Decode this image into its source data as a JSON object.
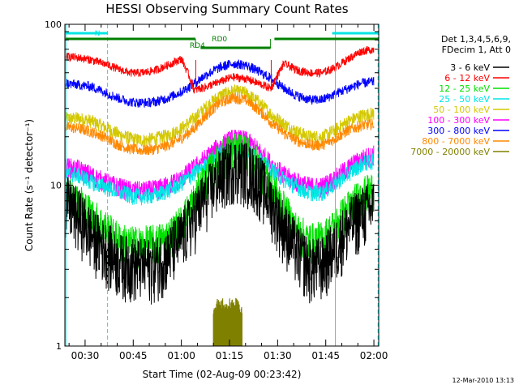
{
  "chart_data": {
    "type": "line",
    "title": "HESSI Observing Summary Count Rates",
    "xlabel": "Start Time (02-Aug-09 00:23:42)",
    "ylabel": "Count Rate (s⁻¹ detector⁻¹)",
    "yscale": "log",
    "ylim": [
      1,
      100
    ],
    "y_ticks": [
      {
        "v": 1,
        "label": "1"
      },
      {
        "v": 10,
        "label": "10"
      },
      {
        "v": 100,
        "label": "100"
      }
    ],
    "xlim_minutes": [
      23.7,
      121.5
    ],
    "x_ticks": [
      {
        "m": 30,
        "label": "00:30"
      },
      {
        "m": 45,
        "label": "00:45"
      },
      {
        "m": 60,
        "label": "01:00"
      },
      {
        "m": 75,
        "label": "01:15"
      },
      {
        "m": 90,
        "label": "01:30"
      },
      {
        "m": 105,
        "label": "01:45"
      },
      {
        "m": 120,
        "label": "02:00"
      }
    ],
    "legend_header": [
      "Det 1,3,4,5,6,9,",
      "FDecim 1, Att 0"
    ],
    "series": [
      {
        "name": "3 - 6 keV",
        "color": "#000000",
        "x": [
          24,
          28,
          32,
          36,
          40,
          44,
          48,
          52,
          56,
          60,
          64,
          68,
          72,
          76,
          80,
          84,
          88,
          92,
          96,
          100,
          104,
          108,
          112,
          116,
          120
        ],
        "y": [
          8.0,
          6.5,
          5.0,
          4.2,
          3.5,
          3.3,
          3.2,
          3.3,
          3.8,
          4.8,
          6.5,
          9.0,
          11.5,
          13.5,
          13.0,
          11.0,
          8.0,
          5.5,
          4.0,
          3.2,
          3.3,
          4.2,
          5.6,
          6.8,
          7.5
        ]
      },
      {
        "name": "6 - 12 keV",
        "color": "#ff0000",
        "x": [
          24,
          28,
          32,
          36,
          40,
          44,
          48,
          52,
          56,
          60,
          64,
          68,
          72,
          76,
          80,
          84,
          88,
          92,
          96,
          100,
          104,
          108,
          112,
          116,
          120
        ],
        "y": [
          63,
          62,
          60,
          57,
          53,
          50,
          50,
          52,
          56,
          61,
          39,
          41,
          44,
          47,
          46,
          43,
          40,
          57,
          52,
          50,
          50,
          54,
          61,
          68,
          70
        ]
      },
      {
        "name": "12 - 25 keV",
        "color": "#00e000",
        "x": [
          24,
          28,
          32,
          36,
          40,
          44,
          48,
          52,
          56,
          60,
          64,
          68,
          72,
          76,
          80,
          84,
          88,
          92,
          96,
          100,
          104,
          108,
          112,
          116,
          120
        ],
        "y": [
          9.0,
          8.0,
          6.5,
          5.5,
          4.6,
          4.3,
          4.3,
          4.4,
          4.8,
          5.8,
          8.0,
          11.5,
          14.5,
          16.5,
          16.0,
          13.5,
          10.0,
          7.0,
          5.2,
          4.5,
          4.6,
          5.6,
          7.2,
          8.5,
          9.5
        ]
      },
      {
        "name": "25 - 50 keV",
        "color": "#00e5e5",
        "x": [
          24,
          28,
          32,
          36,
          40,
          44,
          48,
          52,
          56,
          60,
          64,
          68,
          72,
          76,
          80,
          84,
          88,
          92,
          96,
          100,
          104,
          108,
          112,
          116,
          120
        ],
        "y": [
          12.0,
          11.5,
          10.5,
          9.8,
          9.2,
          8.6,
          8.5,
          8.7,
          9.3,
          10.3,
          11.8,
          13.5,
          15.8,
          16.8,
          16.5,
          14.5,
          12.5,
          10.8,
          9.8,
          9.0,
          9.0,
          10.2,
          11.8,
          13.5,
          14.2
        ]
      },
      {
        "name": "50 - 100 keV",
        "color": "#d4c800",
        "x": [
          24,
          28,
          32,
          36,
          40,
          44,
          48,
          52,
          56,
          60,
          64,
          68,
          72,
          76,
          80,
          84,
          88,
          92,
          96,
          100,
          104,
          108,
          112,
          116,
          120
        ],
        "y": [
          26,
          26,
          25,
          23,
          21,
          19.5,
          19,
          19.5,
          20.5,
          22.5,
          26,
          31,
          36,
          38.5,
          37.5,
          33,
          27.5,
          24,
          21.5,
          20,
          20,
          22,
          25,
          27,
          28
        ]
      },
      {
        "name": "100 - 300 keV",
        "color": "#ff00ff",
        "x": [
          24,
          28,
          32,
          36,
          40,
          44,
          48,
          52,
          56,
          60,
          64,
          68,
          72,
          76,
          80,
          84,
          88,
          92,
          96,
          100,
          104,
          108,
          112,
          116,
          120
        ],
        "y": [
          13.0,
          12.5,
          11.5,
          10.5,
          9.8,
          9.3,
          9.2,
          9.4,
          10.0,
          11.0,
          12.8,
          15.0,
          17.5,
          19.5,
          19.0,
          16.5,
          13.5,
          11.5,
          10.5,
          9.8,
          9.8,
          11.0,
          12.8,
          14.5,
          15.5
        ]
      },
      {
        "name": "300 - 800 keV",
        "color": "#0000ff",
        "x": [
          24,
          28,
          32,
          36,
          40,
          44,
          48,
          52,
          56,
          60,
          64,
          68,
          72,
          76,
          80,
          84,
          88,
          92,
          96,
          100,
          104,
          108,
          112,
          116,
          120
        ],
        "y": [
          43,
          42,
          41,
          38,
          35,
          33,
          32.5,
          33,
          35,
          38,
          43,
          49,
          54,
          57,
          56,
          51,
          46,
          40,
          36,
          34,
          34,
          37,
          40,
          43,
          44
        ]
      },
      {
        "name": "800 - 7000 keV",
        "color": "#ff8800",
        "x": [
          24,
          28,
          32,
          36,
          40,
          44,
          48,
          52,
          56,
          60,
          64,
          68,
          72,
          76,
          80,
          84,
          88,
          92,
          96,
          100,
          104,
          108,
          112,
          116,
          120
        ],
        "y": [
          23,
          22.5,
          21.5,
          20,
          18,
          16.8,
          16.5,
          16.8,
          17.8,
          19.5,
          22.5,
          27.5,
          32.5,
          35,
          34,
          29.5,
          24.5,
          21,
          19,
          17.8,
          17.8,
          19.5,
          22,
          23.5,
          24
        ]
      },
      {
        "name": "7000 - 20000 keV",
        "color": "#808000",
        "x": [
          70,
          71,
          72,
          73,
          74,
          75,
          76,
          77,
          78,
          79
        ],
        "y": [
          1.7,
          1.9,
          1.8,
          1.9,
          1.75,
          1.9,
          1.85,
          1.9,
          1.8,
          1.7
        ]
      }
    ],
    "annotations": [
      {
        "text": "N",
        "color": "#00e5e5"
      },
      {
        "text": "RD4",
        "color": "#008000"
      },
      {
        "text": "RD0",
        "color": "#008000"
      }
    ],
    "intervals": {
      "night": {
        "color": "#00e5e5",
        "segments": [
          [
            23.9,
            37.0
          ],
          [
            107.0,
            121.5
          ]
        ]
      },
      "attenuator": {
        "color": "#008000",
        "segments": [
          [
            23.9,
            64.4
          ],
          [
            66.0,
            87.8
          ],
          [
            89.0,
            121.5
          ]
        ]
      },
      "solid_markers": {
        "color": "#00e5e5",
        "x": [
          24.0,
          108.0
        ]
      },
      "dashed_markers": {
        "color": "#00e5e5",
        "x": [
          37.0,
          121.3
        ]
      },
      "step_markers": {
        "color_red": "#ff0000",
        "x": [
          64.5,
          88.0
        ]
      }
    }
  },
  "footer": {
    "date": "12-Mar-2010 13:13"
  }
}
